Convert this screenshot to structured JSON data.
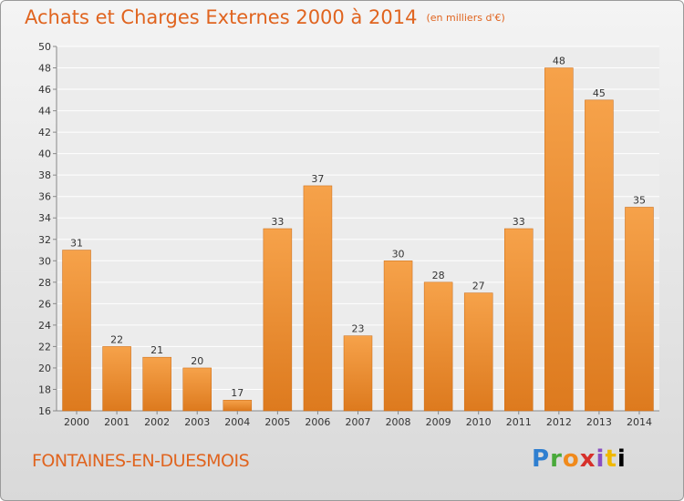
{
  "header": {
    "title": "Achats et Charges Externes 2000 à 2014",
    "unit": "(en milliers d'€)"
  },
  "footer": {
    "commune": "FONTAINES-EN-DUESMOIS",
    "logo_letters": [
      "P",
      "r",
      "o",
      "x",
      "i",
      "t",
      "i"
    ]
  },
  "colors": {
    "bar_light": "#f6a24a",
    "bar_dark": "#dd7a1e",
    "title": "#e0641f"
  },
  "chart_data": {
    "type": "bar",
    "categories": [
      "2000",
      "2001",
      "2002",
      "2003",
      "2004",
      "2005",
      "2006",
      "2007",
      "2008",
      "2009",
      "2010",
      "2011",
      "2012",
      "2013",
      "2014"
    ],
    "values": [
      31,
      22,
      21,
      20,
      17,
      33,
      37,
      23,
      30,
      28,
      27,
      33,
      48,
      45,
      35
    ],
    "ylim": [
      16,
      50
    ],
    "yticks": [
      16,
      18,
      20,
      22,
      24,
      26,
      28,
      30,
      32,
      34,
      36,
      38,
      40,
      42,
      44,
      46,
      48,
      50
    ],
    "grid": true,
    "data_labels": true,
    "legend": "none"
  }
}
